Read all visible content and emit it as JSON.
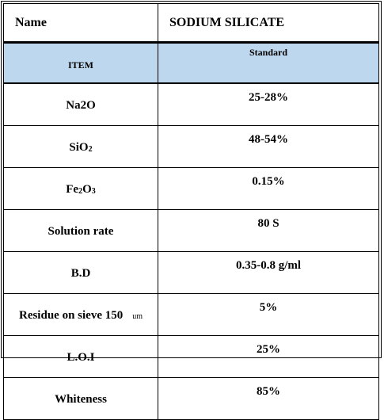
{
  "name_label": "Name",
  "name_value": "SODIUM SILICATE",
  "headers": {
    "item": "ITEM",
    "standard": "Standard"
  },
  "rows": [
    {
      "item": "Na2O",
      "standard": "25-28%"
    },
    {
      "item_main": "SiO",
      "item_sub": "2",
      "standard": "48-54%"
    },
    {
      "item_main": "Fe",
      "item_sub": "2",
      "item_main2": "O",
      "item_sub2": "3",
      "standard": "0.15%"
    },
    {
      "item": "Solution rate",
      "standard": "80 S"
    },
    {
      "item": "B.D",
      "standard": "0.35-0.8 g/ml"
    },
    {
      "item": "Residue on sieve 150",
      "item_unit": "um",
      "standard": "5%"
    },
    {
      "item": "L.O.I",
      "standard": "25%"
    },
    {
      "item": "Whiteness",
      "standard": "85%"
    }
  ]
}
